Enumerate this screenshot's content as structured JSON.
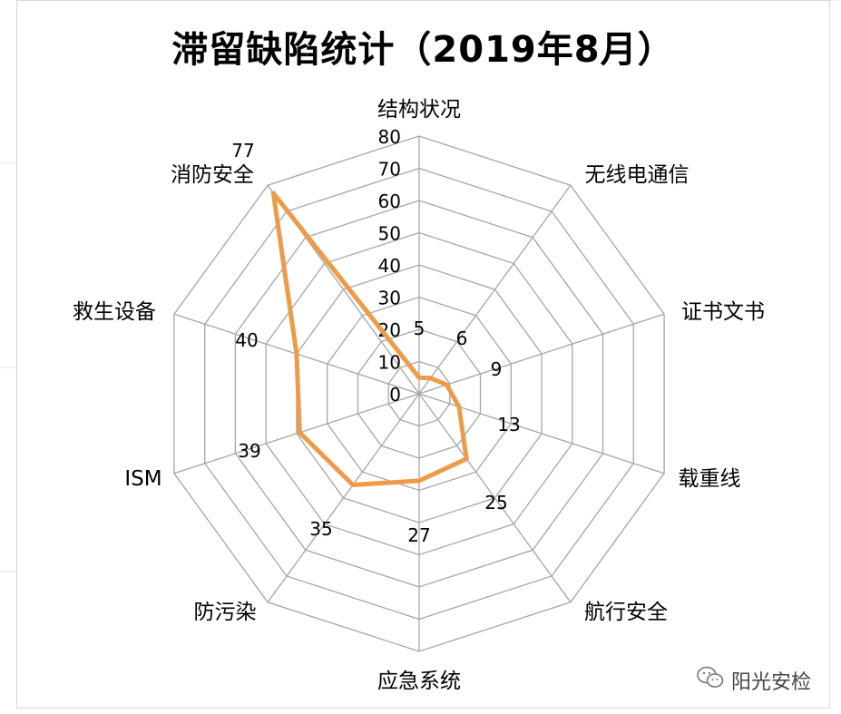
{
  "title": "滞留缺陷统计（2019年8月）",
  "watermark": "阳光安检",
  "chart_data": {
    "type": "radar",
    "title": "滞留缺陷统计（2019年8月）",
    "categories": [
      "结构状况",
      "无线电通信",
      "证书文书",
      "载重线",
      "航行安全",
      "应急系统",
      "防污染",
      "ISM",
      "救生设备",
      "消防安全"
    ],
    "values": [
      5,
      6,
      9,
      13,
      25,
      27,
      35,
      39,
      40,
      77
    ],
    "range": [
      0,
      80
    ],
    "ticks": [
      0,
      10,
      20,
      30,
      40,
      50,
      60,
      70,
      80
    ],
    "tick_labels": [
      "0",
      "10",
      "20",
      "30",
      "40",
      "50",
      "60",
      "70",
      "80"
    ],
    "grid": true,
    "legend": "none",
    "series_color": "#ED9B49",
    "gridline_color": "#a6a6a6"
  }
}
